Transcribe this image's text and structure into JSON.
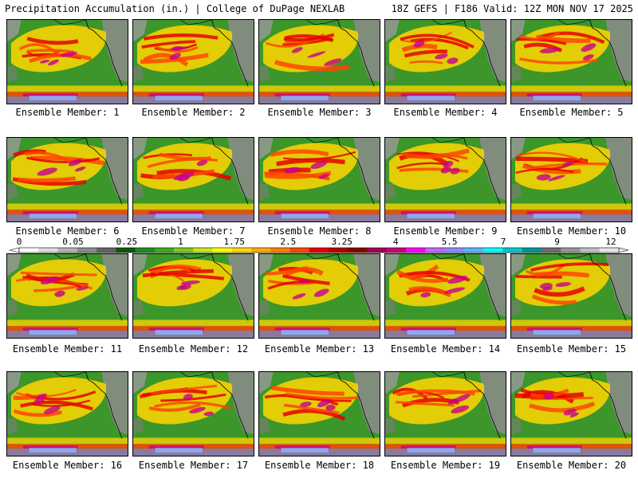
{
  "header": {
    "left": "Precipitation Accumulation (in.) | College of DuPage NEXLAB",
    "right": "18Z GEFS | F186 Valid: 12Z MON NOV 17 2025"
  },
  "members": [
    "Ensemble Member: 1",
    "Ensemble Member: 2",
    "Ensemble Member: 3",
    "Ensemble Member: 4",
    "Ensemble Member: 5",
    "Ensemble Member: 6",
    "Ensemble Member: 7",
    "Ensemble Member: 8",
    "Ensemble Member: 9",
    "Ensemble Member: 10",
    "Ensemble Member: 11",
    "Ensemble Member: 12",
    "Ensemble Member: 13",
    "Ensemble Member: 14",
    "Ensemble Member: 15",
    "Ensemble Member: 16",
    "Ensemble Member: 17",
    "Ensemble Member: 18",
    "Ensemble Member: 19",
    "Ensemble Member: 20"
  ],
  "colorbar": {
    "labels": [
      "0",
      "0.05",
      "0.25",
      "1",
      "1.75",
      "2.5",
      "3.25",
      "4",
      "5.5",
      "7",
      "9",
      "12"
    ],
    "colors": [
      "#ffffff",
      "#dcdcdc",
      "#b4b4b4",
      "#8c8c8c",
      "#646464",
      "#0a5a0a",
      "#1e8c1e",
      "#3caa1e",
      "#7dc81e",
      "#c8e61e",
      "#ffff00",
      "#ffd700",
      "#ffaa00",
      "#ff7f00",
      "#ff4500",
      "#e60000",
      "#b40000",
      "#8b0000",
      "#a00050",
      "#c80078",
      "#ff00ff",
      "#c864ff",
      "#8c8cff",
      "#5ab4ff",
      "#00ffff",
      "#00c8c8",
      "#009696",
      "#6e6e6e",
      "#969696",
      "#bebebe",
      "#e6e6e6"
    ]
  }
}
